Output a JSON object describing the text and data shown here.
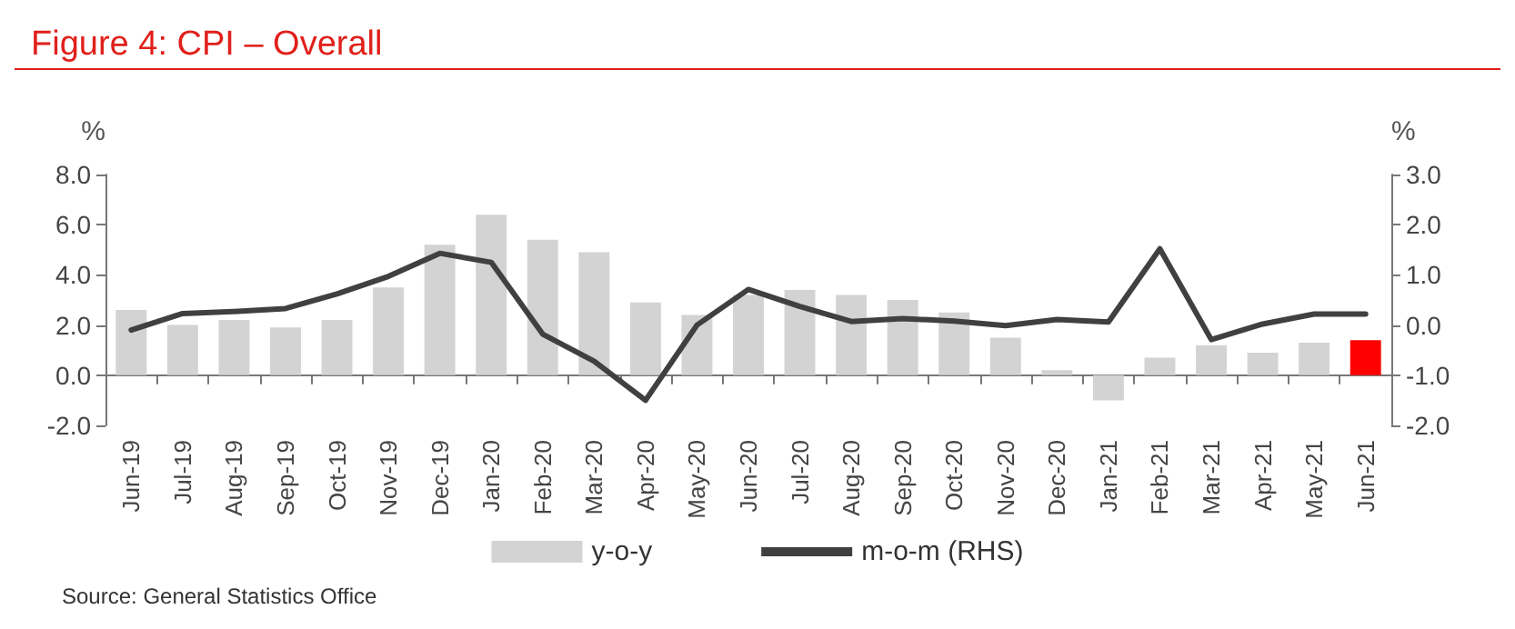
{
  "chart_data": {
    "type": "bar",
    "title": "Figure 4: CPI – Overall",
    "ylabel": "%",
    "y2label": "%",
    "categories": [
      "Jun-19",
      "Jul-19",
      "Aug-19",
      "Sep-19",
      "Oct-19",
      "Nov-19",
      "Dec-19",
      "Jan-20",
      "Feb-20",
      "Mar-20",
      "Apr-20",
      "May-20",
      "Jun-20",
      "Jul-20",
      "Aug-20",
      "Sep-20",
      "Oct-20",
      "Nov-20",
      "Dec-20",
      "Jan-21",
      "Feb-21",
      "Mar-21",
      "Apr-21",
      "May-21",
      "Jun-21"
    ],
    "series": [
      {
        "name": "y-o-y",
        "color": "#d3d3d3",
        "colors": [
          "#d3d3d3",
          "#d3d3d3",
          "#d3d3d3",
          "#d3d3d3",
          "#d3d3d3",
          "#d3d3d3",
          "#d3d3d3",
          "#d3d3d3",
          "#d3d3d3",
          "#d3d3d3",
          "#d3d3d3",
          "#d3d3d3",
          "#d3d3d3",
          "#d3d3d3",
          "#d3d3d3",
          "#d3d3d3",
          "#d3d3d3",
          "#d3d3d3",
          "#d3d3d3",
          "#d3d3d3",
          "#d3d3d3",
          "#d3d3d3",
          "#d3d3d3",
          "#d3d3d3",
          "#ff0000"
        ],
        "values": [
          2.6,
          2.0,
          2.2,
          1.9,
          2.2,
          3.5,
          5.2,
          6.4,
          5.4,
          4.9,
          2.9,
          2.4,
          3.2,
          3.4,
          3.2,
          3.0,
          2.5,
          1.5,
          0.2,
          -1.0,
          0.7,
          1.2,
          0.9,
          1.3,
          1.4
        ]
      },
      {
        "name": "m-o-m (RHS)",
        "type": "line",
        "axis": "y2",
        "color": "#404040",
        "values": [
          -0.1,
          0.23,
          0.27,
          0.33,
          0.62,
          0.97,
          1.43,
          1.25,
          -0.18,
          -0.72,
          -1.5,
          0.0,
          0.71,
          0.37,
          0.07,
          0.13,
          0.08,
          -0.01,
          0.11,
          0.06,
          1.52,
          -0.29,
          0.02,
          0.22,
          0.22
        ]
      }
    ],
    "ylim": [
      -2,
      8
    ],
    "yticks": [
      {
        "value": -2,
        "label": "-2.0"
      },
      {
        "value": 0,
        "label": "0.0"
      },
      {
        "value": 2,
        "label": "2.0"
      },
      {
        "value": 4,
        "label": "4.0"
      },
      {
        "value": 6,
        "label": "6.0"
      },
      {
        "value": 8,
        "label": "8.0"
      }
    ],
    "y2lim": [
      -2,
      3
    ],
    "y2ticks": [
      {
        "value": -2,
        "label": "-2.0"
      },
      {
        "value": -1,
        "label": "-1.0"
      },
      {
        "value": 0,
        "label": "0.0"
      },
      {
        "value": 1,
        "label": "1.0"
      },
      {
        "value": 2,
        "label": "2.0"
      },
      {
        "value": 3,
        "label": "3.0"
      }
    ],
    "legend": "bottom",
    "marker": "none",
    "line_style": "solid",
    "annotations": [
      "Source: General Statistics Office"
    ]
  }
}
